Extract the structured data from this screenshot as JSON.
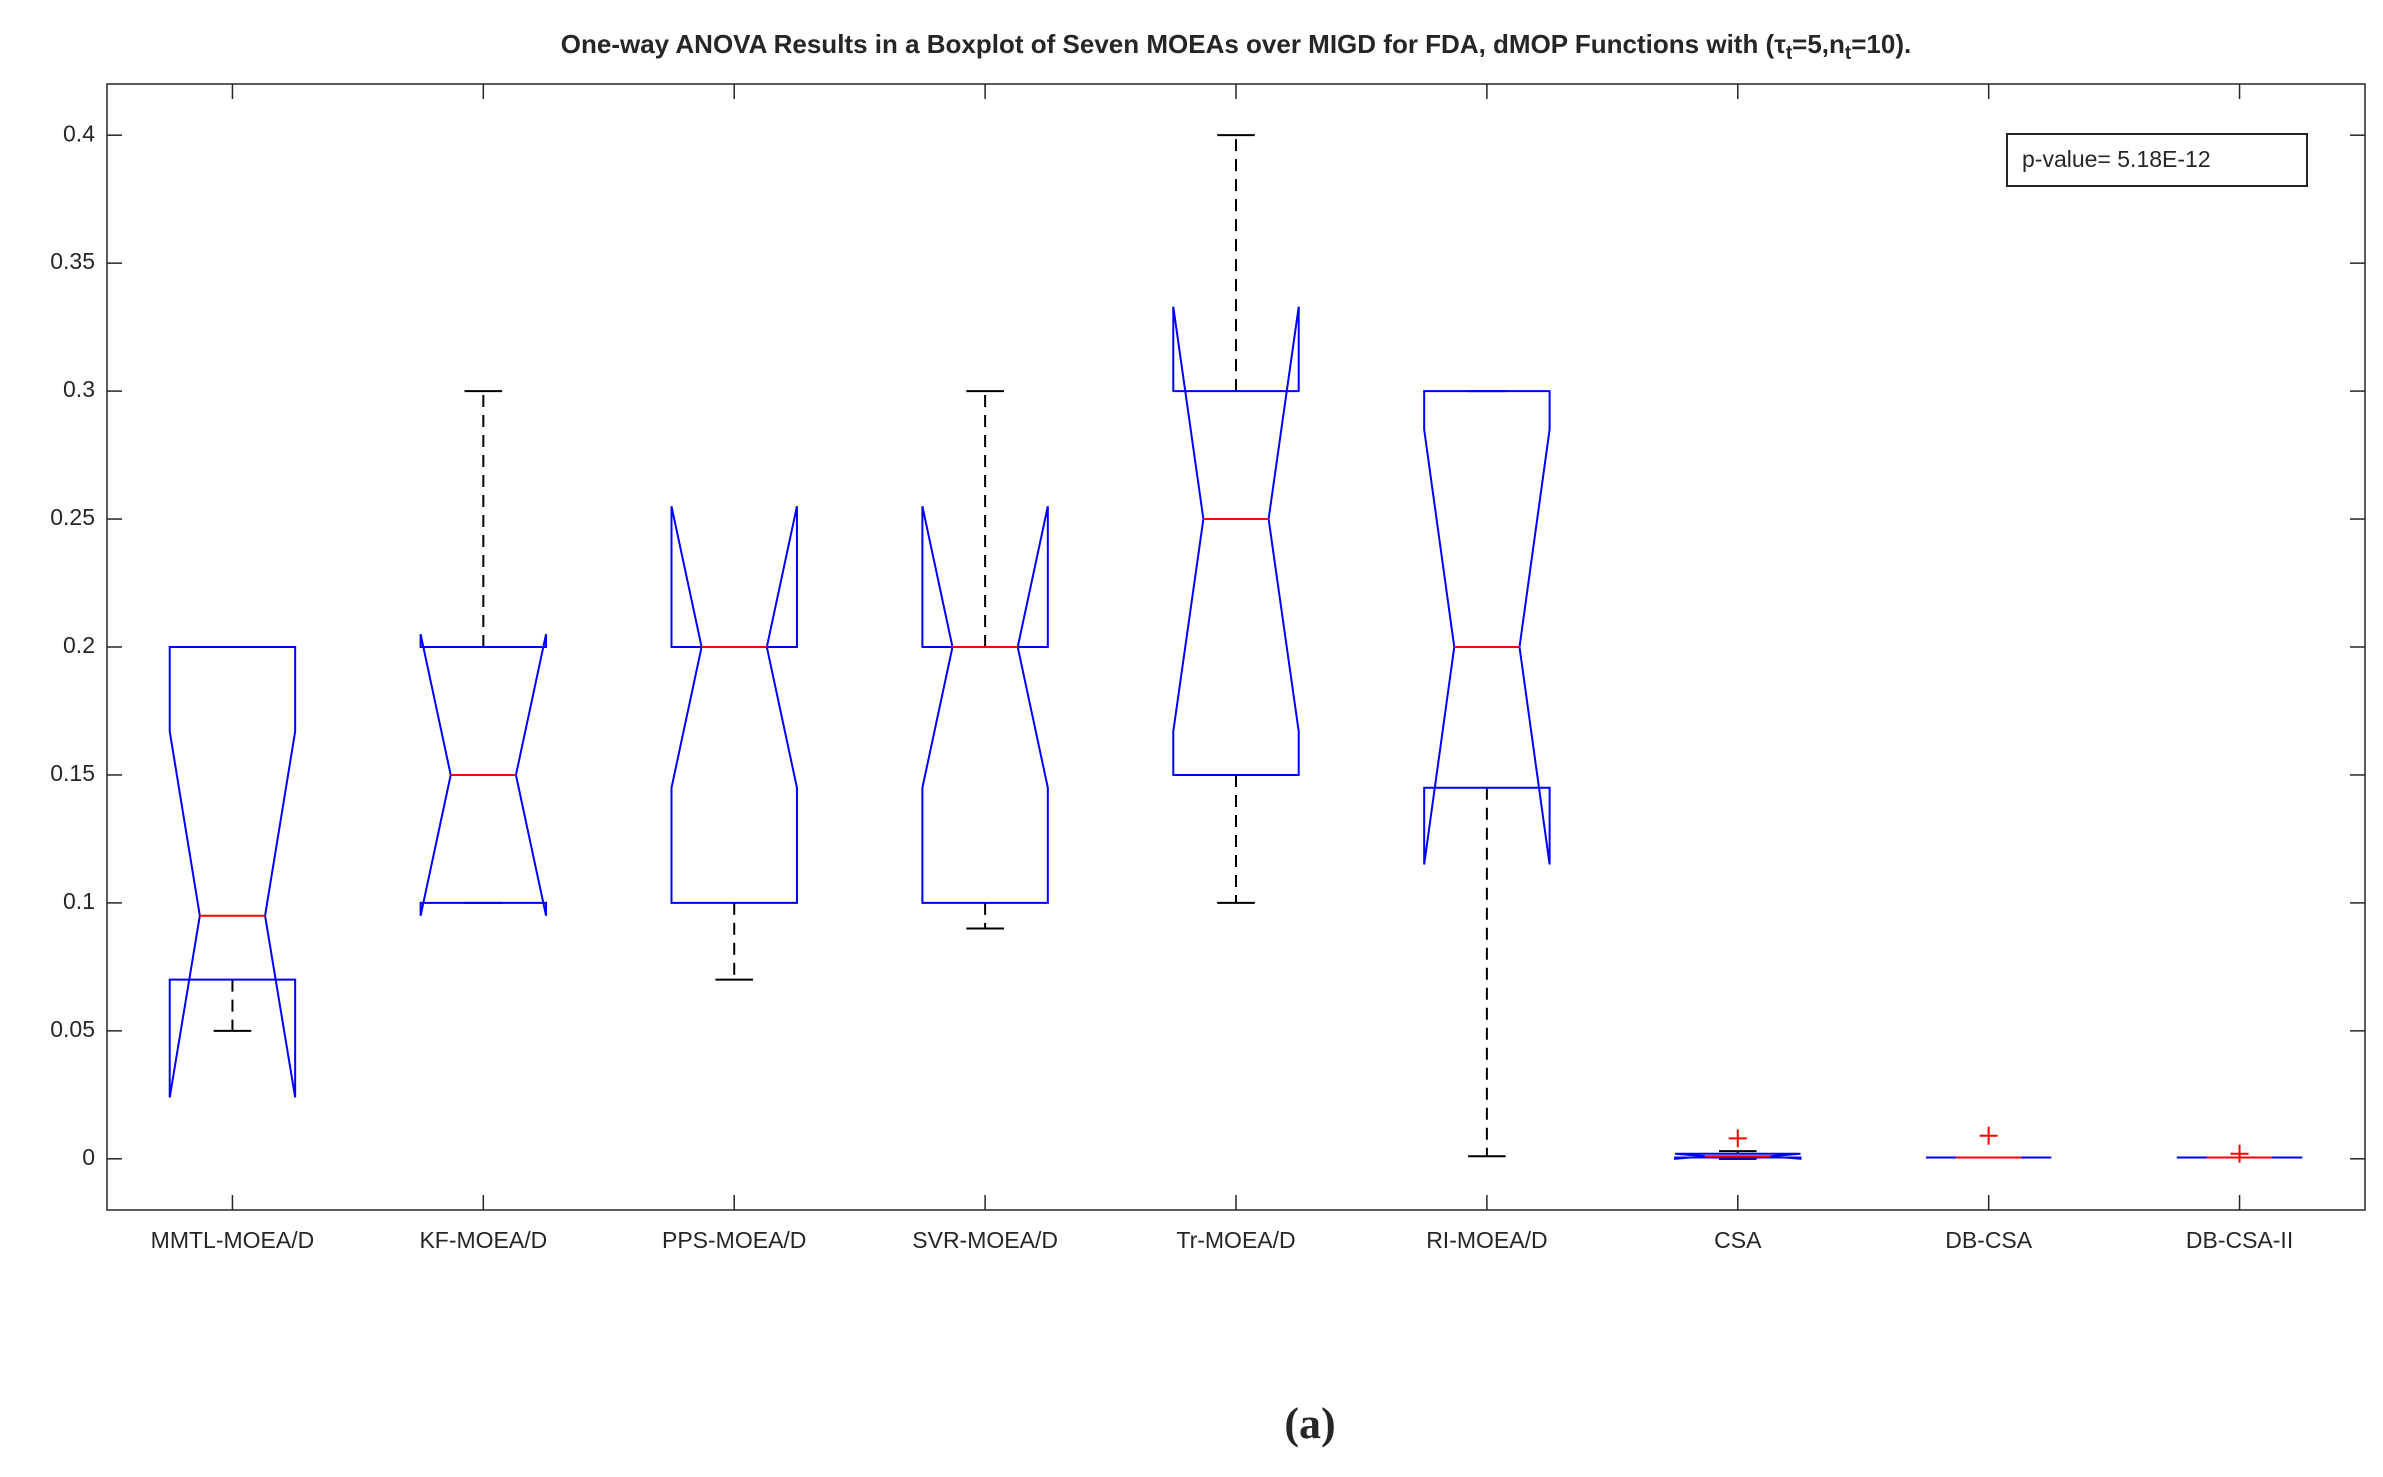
{
  "chart_data": {
    "type": "boxplot",
    "title_segments": [
      "One-way ANOVA Results in a Boxplot of Seven MOEAs over MIGD for FDA, dMOP Functions with (τ",
      "t",
      "=5,n",
      "t",
      "=10)."
    ],
    "categories": [
      "MMTL-MOEA/D",
      "KF-MOEA/D",
      "PPS-MOEA/D",
      "SVR-MOEA/D",
      "Tr-MOEA/D",
      "RI-MOEA/D",
      "CSA",
      "DB-CSA",
      "DB-CSA-II"
    ],
    "boxes": [
      {
        "whisker_low": 0.05,
        "q1": 0.07,
        "median": 0.095,
        "q3": 0.2,
        "whisker_high": 0.2,
        "notch_low": 0.024,
        "notch_high": 0.167,
        "outliers": []
      },
      {
        "whisker_low": 0.1,
        "q1": 0.1,
        "median": 0.15,
        "q3": 0.2,
        "whisker_high": 0.3,
        "notch_low": 0.095,
        "notch_high": 0.205,
        "outliers": []
      },
      {
        "whisker_low": 0.07,
        "q1": 0.1,
        "median": 0.2,
        "q3": 0.2,
        "whisker_high": 0.2,
        "notch_low": 0.145,
        "notch_high": 0.255,
        "outliers": []
      },
      {
        "whisker_low": 0.09,
        "q1": 0.1,
        "median": 0.2,
        "q3": 0.2,
        "whisker_high": 0.3,
        "notch_low": 0.145,
        "notch_high": 0.255,
        "outliers": []
      },
      {
        "whisker_low": 0.1,
        "q1": 0.15,
        "median": 0.25,
        "q3": 0.3,
        "whisker_high": 0.4,
        "notch_low": 0.167,
        "notch_high": 0.333,
        "outliers": []
      },
      {
        "whisker_low": 0.001,
        "q1": 0.145,
        "median": 0.2,
        "q3": 0.3,
        "whisker_high": 0.3,
        "notch_low": 0.115,
        "notch_high": 0.285,
        "outliers": []
      },
      {
        "whisker_low": 0,
        "q1": 0.0005,
        "median": 0.001,
        "q3": 0.002,
        "whisker_high": 0.003,
        "notch_low": 0,
        "notch_high": 0.002,
        "outliers": [
          0.008
        ]
      },
      {
        "whisker_low": 0.0005,
        "q1": 0.0005,
        "median": 0.0005,
        "q3": 0.0005,
        "whisker_high": 0.0005,
        "notch_low": 0.0005,
        "notch_high": 0.0005,
        "outliers": [
          0.009
        ]
      },
      {
        "whisker_low": 0.0005,
        "q1": 0.0005,
        "median": 0.0005,
        "q3": 0.0005,
        "whisker_high": 0.0005,
        "notch_low": 0.0005,
        "notch_high": 0.0005,
        "outliers": [
          0.002
        ]
      }
    ],
    "box_color": "#0000ff",
    "median_color": "#ff0000",
    "whisker_color": "#000000",
    "outlier_color": "#ff0000",
    "ylim": [
      -0.02,
      0.42
    ],
    "yticks": [
      0,
      0.05,
      0.1,
      0.15,
      0.2,
      0.25,
      0.3,
      0.35,
      0.4
    ],
    "annotation": "p-value= 5.18E-12",
    "caption": "(a)"
  }
}
